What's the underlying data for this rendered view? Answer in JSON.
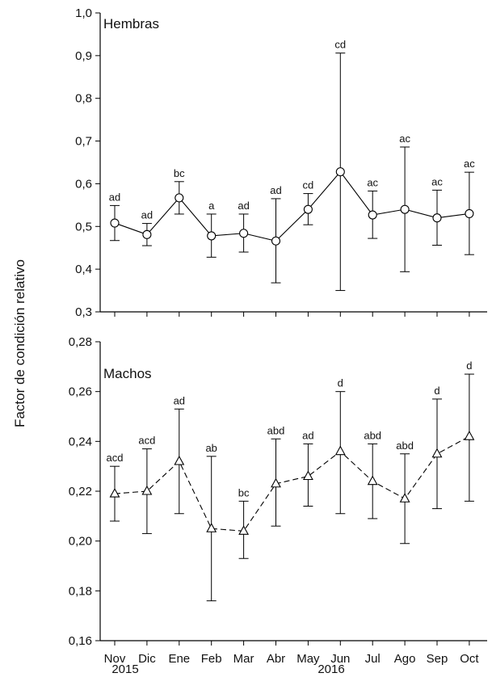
{
  "chart_data": [
    {
      "type": "line",
      "title": "Hembras",
      "ylabel": "Factor de condición relativo",
      "xlabel": "",
      "categories": [
        "Nov",
        "Dic",
        "Ene",
        "Feb",
        "Mar",
        "Abr",
        "May",
        "Jun",
        "Jul",
        "Ago",
        "Sep",
        "Oct"
      ],
      "ylim": [
        0.3,
        1.0
      ],
      "yticks": [
        "0,3",
        "0,4",
        "0,5",
        "0,6",
        "0,7",
        "0,8",
        "0,9",
        "1,0"
      ],
      "marker": "circle",
      "line_style": "solid",
      "series": [
        {
          "values": [
            0.508,
            0.481,
            0.567,
            0.478,
            0.484,
            0.466,
            0.54,
            0.628,
            0.527,
            0.54,
            0.52,
            0.53
          ],
          "err_low": [
            0.467,
            0.455,
            0.529,
            0.428,
            0.44,
            0.368,
            0.504,
            0.35,
            0.472,
            0.394,
            0.456,
            0.434
          ],
          "err_high": [
            0.549,
            0.507,
            0.605,
            0.529,
            0.529,
            0.565,
            0.577,
            0.906,
            0.583,
            0.686,
            0.585,
            0.627
          ],
          "sig_labels": [
            "ad",
            "ad",
            "bc",
            "a",
            "ad",
            "ad",
            "cd",
            "cd",
            "ac",
            "ac",
            "ac",
            "ac"
          ]
        }
      ]
    },
    {
      "type": "line",
      "title": "Machos",
      "ylabel": "Factor de condición relativo",
      "xlabel": "",
      "categories": [
        "Nov",
        "Dic",
        "Ene",
        "Feb",
        "Mar",
        "Abr",
        "May",
        "Jun",
        "Jul",
        "Ago",
        "Sep",
        "Oct"
      ],
      "ylim": [
        0.16,
        0.28
      ],
      "yticks": [
        "0,16",
        "0,18",
        "0,20",
        "0,22",
        "0,24",
        "0,26",
        "0,28"
      ],
      "marker": "triangle",
      "line_style": "dashed",
      "series": [
        {
          "values": [
            0.219,
            0.22,
            0.232,
            0.205,
            0.204,
            0.223,
            0.226,
            0.236,
            0.224,
            0.217,
            0.235,
            0.242
          ],
          "err_low": [
            0.208,
            0.203,
            0.211,
            0.176,
            0.193,
            0.206,
            0.214,
            0.211,
            0.209,
            0.199,
            0.213,
            0.216
          ],
          "err_high": [
            0.23,
            0.237,
            0.253,
            0.234,
            0.216,
            0.241,
            0.239,
            0.26,
            0.239,
            0.235,
            0.257,
            0.267
          ],
          "sig_labels": [
            "acd",
            "acd",
            "ad",
            "ab",
            "bc",
            "abd",
            "ad",
            "d",
            "abd",
            "abd",
            "d",
            "d"
          ]
        }
      ]
    }
  ],
  "x_axis": {
    "months": [
      "Nov",
      "Dic",
      "Ene",
      "Feb",
      "Mar",
      "Abr",
      "May",
      "Jun",
      "Jul",
      "Ago",
      "Sep",
      "Oct"
    ],
    "years": [
      "2015",
      "2016"
    ]
  },
  "shared_ylabel": "Factor de condición relativo"
}
